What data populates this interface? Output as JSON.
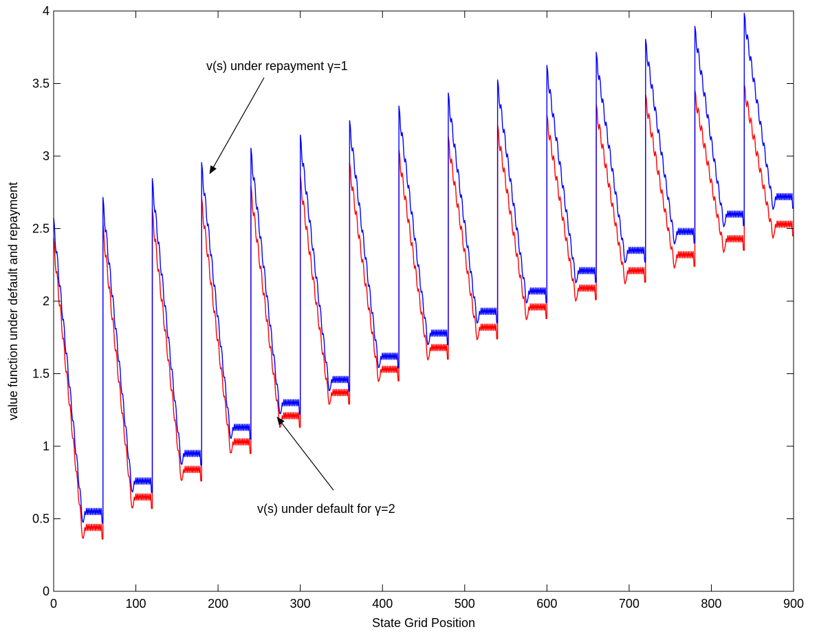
{
  "chart_data": {
    "type": "line",
    "xlabel": "State Grid Position",
    "ylabel": "value function under default and repayment",
    "xlim": [
      0,
      900
    ],
    "ylim": [
      0,
      4
    ],
    "xticks": [
      "0",
      "100",
      "200",
      "300",
      "400",
      "500",
      "600",
      "700",
      "800",
      "900"
    ],
    "yticks": [
      "0",
      "0.5",
      "1",
      "1.5",
      "2",
      "2.5",
      "3",
      "3.5",
      "4"
    ],
    "grid": false,
    "block_size": 60,
    "series": [
      {
        "color": "#0000ff",
        "block_starts": [
          0,
          60,
          120,
          180,
          240,
          300,
          360,
          420,
          480,
          540,
          600,
          660,
          720,
          780,
          840
        ],
        "peaks": [
          2.54,
          2.68,
          2.81,
          2.92,
          3.02,
          3.11,
          3.21,
          3.31,
          3.4,
          3.49,
          3.59,
          3.68,
          3.77,
          3.86,
          3.95
        ],
        "floors": [
          0.55,
          0.76,
          0.95,
          1.13,
          1.3,
          1.46,
          1.62,
          1.78,
          1.93,
          2.07,
          2.21,
          2.35,
          2.48,
          2.6,
          2.72
        ]
      },
      {
        "color": "#ff0000",
        "block_starts": [
          0,
          60,
          120,
          180,
          240,
          300,
          360,
          420,
          480,
          540,
          600,
          660,
          720,
          780,
          840
        ],
        "peaks": [
          2.4,
          2.5,
          2.6,
          2.68,
          2.76,
          2.83,
          2.92,
          3.01,
          3.1,
          3.18,
          3.25,
          3.32,
          3.39,
          3.42,
          3.46
        ],
        "floors": [
          0.44,
          0.65,
          0.84,
          1.03,
          1.21,
          1.37,
          1.53,
          1.68,
          1.82,
          1.96,
          2.09,
          2.21,
          2.32,
          2.43,
          2.53
        ]
      }
    ],
    "annotations": [
      {
        "text": "v(s) under repayment γ=1",
        "arrow_to": [
          190,
          2.88
        ]
      },
      {
        "text": "v(s) under default for γ=2",
        "arrow_to": [
          272,
          1.2
        ]
      }
    ]
  }
}
